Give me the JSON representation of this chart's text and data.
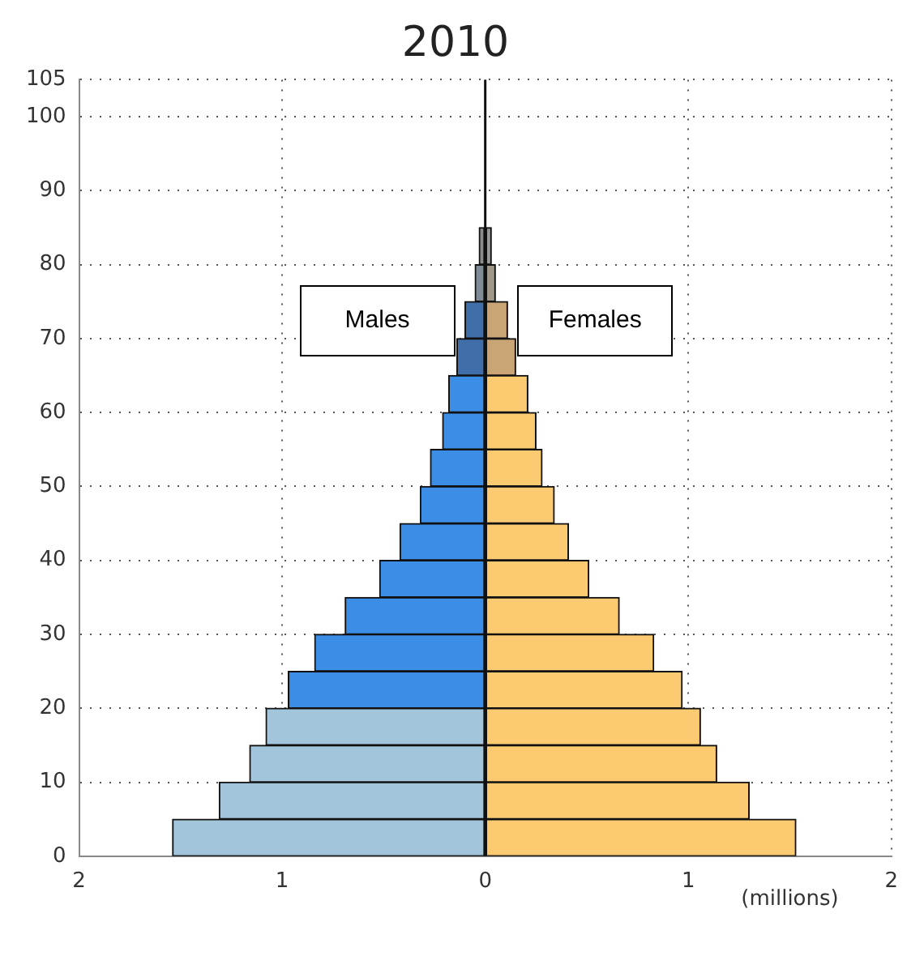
{
  "chart_data": {
    "type": "bar",
    "title": "2010",
    "xlabel": "(millions)",
    "orientation": "horizontal",
    "stacked": true,
    "x": [
      2.5,
      7.5,
      12.5,
      17.5,
      22.5,
      27.5,
      32.5,
      37.5,
      42.5,
      47.5,
      52.5,
      57.5,
      62.5,
      67.5,
      72.5,
      77.5,
      82.5
    ],
    "series": [
      {
        "name": "Males",
        "values": [
          -1.54,
          -1.31,
          -1.16,
          -1.08,
          -0.97,
          -0.84,
          -0.69,
          -0.52,
          -0.42,
          -0.32,
          -0.27,
          -0.21,
          -0.18,
          -0.14,
          -0.1,
          -0.05,
          -0.03
        ],
        "colors": [
          "#a3c5dc",
          "#a3c5dc",
          "#a3c5dc",
          "#a3c5dc",
          "#3c8de6",
          "#3c8de6",
          "#3c8de6",
          "#3c8de6",
          "#3c8de6",
          "#3c8de6",
          "#3c8de6",
          "#3c8de6",
          "#3c8de6",
          "#3f6ea8",
          "#3f6ea8",
          "#7f8c98",
          "#8c8c8c"
        ]
      },
      {
        "name": "Females",
        "values": [
          1.53,
          1.3,
          1.14,
          1.06,
          0.97,
          0.83,
          0.66,
          0.51,
          0.41,
          0.34,
          0.28,
          0.25,
          0.21,
          0.15,
          0.11,
          0.05,
          0.03
        ],
        "colors": [
          "#fcca70",
          "#fcca70",
          "#fcca70",
          "#fcca70",
          "#fcca70",
          "#fcca70",
          "#fcca70",
          "#fcca70",
          "#fcca70",
          "#fcca70",
          "#fcca70",
          "#fcca70",
          "#fcca70",
          "#c9a474",
          "#c9a474",
          "#a09888",
          "#9a9a9a"
        ]
      }
    ],
    "xlim": [
      -2,
      2
    ],
    "xticks": [
      {
        "value": -2,
        "label": "2"
      },
      {
        "value": -1,
        "label": "1"
      },
      0,
      1,
      2
    ],
    "ylim": [
      0,
      105
    ],
    "yticks": [
      0,
      10,
      20,
      30,
      40,
      50,
      60,
      70,
      80,
      90,
      100,
      105
    ],
    "grid": true,
    "legend": false
  }
}
